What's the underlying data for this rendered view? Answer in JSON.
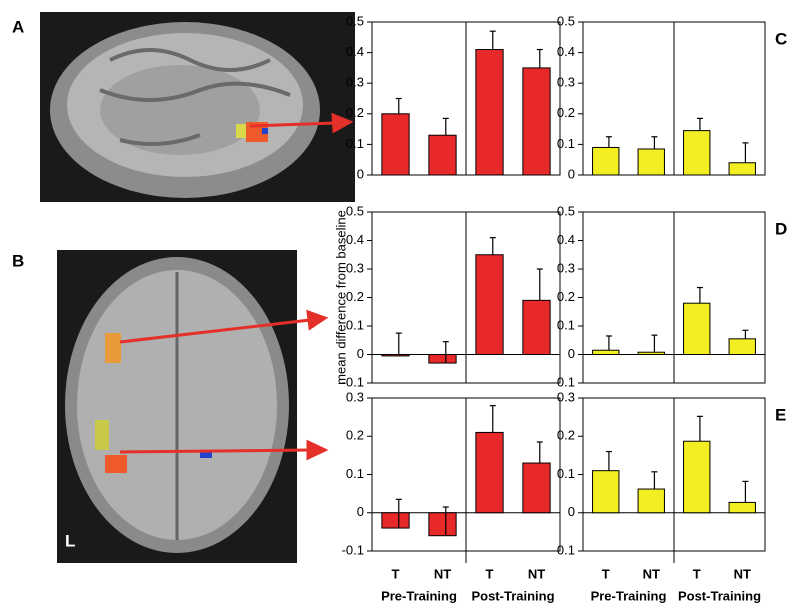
{
  "figure": {
    "panel_a": "A",
    "panel_b": "B",
    "side_marker": "L"
  },
  "chart_data": [
    {
      "type": "bar",
      "color": "#e8292a",
      "values": [
        0.2,
        0.13,
        0.41,
        0.35
      ],
      "errors": [
        0.05,
        0.055,
        0.06,
        0.06
      ],
      "ylim": [
        0,
        0.5
      ],
      "yticks": [
        0,
        0.1,
        0.2,
        0.3,
        0.4,
        0.5
      ]
    },
    {
      "type": "bar",
      "panel": "C",
      "color": "#f3ee22",
      "values": [
        0.09,
        0.085,
        0.145,
        0.04
      ],
      "errors": [
        0.035,
        0.04,
        0.04,
        0.065
      ],
      "ylim": [
        0,
        0.5
      ],
      "yticks": [
        0,
        0.1,
        0.2,
        0.3,
        0.4,
        0.5
      ]
    },
    {
      "type": "bar",
      "ylabel": "mean difference from baseline",
      "color": "#e8292a",
      "values": [
        -0.005,
        -0.03,
        0.35,
        0.19
      ],
      "errors": [
        0.08,
        0.075,
        0.06,
        0.11
      ],
      "ylim": [
        -0.1,
        0.5
      ],
      "yticks": [
        -0.1,
        0,
        0.1,
        0.2,
        0.3,
        0.4,
        0.5
      ]
    },
    {
      "type": "bar",
      "panel": "D",
      "color": "#f3ee22",
      "values": [
        0.015,
        0.008,
        0.18,
        0.055
      ],
      "errors": [
        0.05,
        0.06,
        0.055,
        0.03
      ],
      "ylim": [
        -0.1,
        0.5
      ],
      "yticks": [
        -0.1,
        0,
        0.1,
        0.2,
        0.3,
        0.4,
        0.5
      ]
    },
    {
      "type": "bar",
      "color": "#e8292a",
      "categories": [
        "T",
        "NT",
        "T",
        "NT"
      ],
      "groups": [
        "Pre-Training",
        "Post-Training"
      ],
      "values": [
        -0.04,
        -0.06,
        0.21,
        0.13
      ],
      "errors": [
        0.075,
        0.075,
        0.07,
        0.055
      ],
      "ylim": [
        -0.1,
        0.3
      ],
      "yticks": [
        -0.1,
        0,
        0.1,
        0.2,
        0.3
      ]
    },
    {
      "type": "bar",
      "panel": "E",
      "color": "#f3ee22",
      "categories": [
        "T",
        "NT",
        "T",
        "NT"
      ],
      "groups": [
        "Pre-Training",
        "Post-Training"
      ],
      "values": [
        0.11,
        0.062,
        0.187,
        0.027
      ],
      "errors": [
        0.05,
        0.045,
        0.065,
        0.055
      ],
      "ylim": [
        -0.1,
        0.3
      ],
      "yticks": [
        -0.1,
        0,
        0.1,
        0.2,
        0.3
      ]
    }
  ]
}
